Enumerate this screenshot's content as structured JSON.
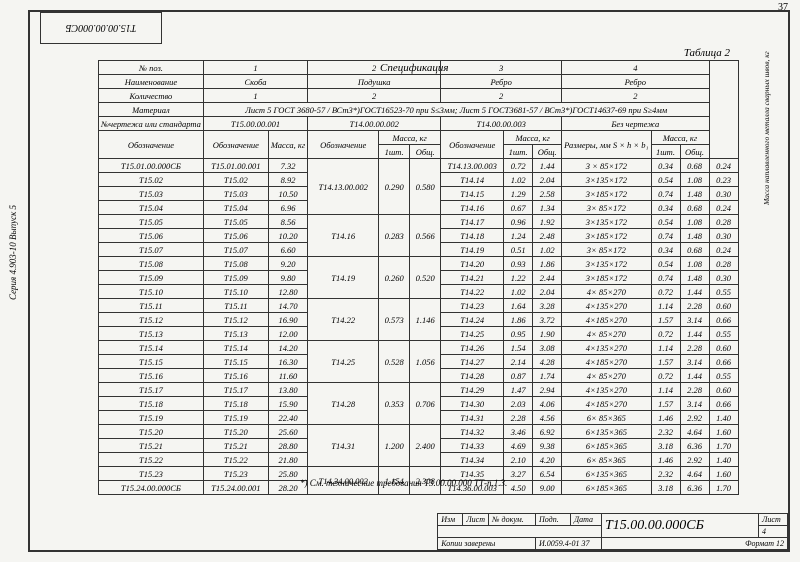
{
  "page_number": "37",
  "left_stamp": "Т15.00.00.000СБ",
  "side_text": "Серия 4.903-10 Выпуск 5",
  "table_label": "Таблица 2",
  "spec_label": "Спецификация",
  "rotated_col_label": "Масса наплавленного металла сварных швов, кг",
  "note": "*) См. технические требования  Т3.00.00.000 ТТ-п.1.3.",
  "drawing_no": "Т15.00.00.000СБ",
  "sheet_no": "4",
  "format": "Формат 12",
  "inv_code": "И.0059.4-01  37",
  "signer": "Копии заверены",
  "tb_labels": [
    "Изм",
    "Лист",
    "№ докум.",
    "Подп.",
    "Дата"
  ],
  "sheet_label": "Лист",
  "header": {
    "no_poz": "№ поз.",
    "c1": "1",
    "c2": "2",
    "c3": "3",
    "c4": "4",
    "naim": "Наименование",
    "n1": "Скоба",
    "n2": "Подушка",
    "n3": "Ребро",
    "n4": "Ребро",
    "kol": "Количество",
    "k1": "1",
    "k2": "2",
    "k3": "2",
    "k4": "2",
    "mat": "Материал",
    "mat_line": "Лист  5 ГОСТ 3680-57 / ВСт3*)ГОСТ16523-70   при S≤3мм;  Лист  5 ГОСТ3681-57 / ВСт3*)ГОСТ14637-69  при S≥4мм",
    "chert": "№чертежа или стандарта",
    "ch1": "Т15.00.00.001",
    "ch2": "Т14.00.00.002",
    "ch3": "Т14.00.00.003",
    "ch4": "Без чертежа",
    "oboz": "Обозначение",
    "massa": "Масса, кг",
    "one": "1шт.",
    "all": "Общ.",
    "razmer": "Размеры, мм  S × h × b₁"
  },
  "rows": [
    {
      "d": "Т15.01.00.000СБ",
      "o1": "Т15.01.00.001",
      "m1": "7.32",
      "o2": "",
      "m2o": "",
      "m2t": "",
      "o3": "Т14.13.00.003",
      "m3o": "0.72",
      "m3t": "1.44",
      "r": "3 × 85×172",
      "m4o": "0.34",
      "m4t": "0.68",
      "w": "0.24"
    },
    {
      "d": "Т15.02",
      "o1": "Т15.02",
      "m1": "8.92",
      "o2": "Т14.13.00.002",
      "m2o": "0.290",
      "m2t": "0.580",
      "o3": "Т14.14",
      "m3o": "1.02",
      "m3t": "2.04",
      "r": "3×135×172",
      "m4o": "0.54",
      "m4t": "1.08",
      "w": "0.23"
    },
    {
      "d": "Т15.03",
      "o1": "Т15.03",
      "m1": "10.50",
      "o2": "",
      "m2o": "",
      "m2t": "",
      "o3": "Т14.15",
      "m3o": "1.29",
      "m3t": "2.58",
      "r": "3×185×172",
      "m4o": "0.74",
      "m4t": "1.48",
      "w": "0.30"
    },
    {
      "d": "Т15.04",
      "o1": "Т15.04",
      "m1": "6.96",
      "o2": "",
      "m2o": "",
      "m2t": "",
      "o3": "Т14.16",
      "m3o": "0.67",
      "m3t": "1.34",
      "r": "3× 85×172",
      "m4o": "0.34",
      "m4t": "0.68",
      "w": "0.24"
    },
    {
      "d": "Т15.05",
      "o1": "Т15.05",
      "m1": "8.56",
      "o2": "Т14.16",
      "m2o": "0.283",
      "m2t": "0.566",
      "o3": "Т14.17",
      "m3o": "0.96",
      "m3t": "1.92",
      "r": "3×135×172",
      "m4o": "0.54",
      "m4t": "1.08",
      "w": "0.28"
    },
    {
      "d": "Т15.06",
      "o1": "Т15.06",
      "m1": "10.20",
      "o2": "",
      "m2o": "",
      "m2t": "",
      "o3": "Т14.18",
      "m3o": "1.24",
      "m3t": "2.48",
      "r": "3×185×172",
      "m4o": "0.74",
      "m4t": "1.48",
      "w": "0.30"
    },
    {
      "d": "Т15.07",
      "o1": "Т15.07",
      "m1": "6.60",
      "o2": "",
      "m2o": "",
      "m2t": "",
      "o3": "Т14.19",
      "m3o": "0.51",
      "m3t": "1.02",
      "r": "3× 85×172",
      "m4o": "0.34",
      "m4t": "0.68",
      "w": "0.24"
    },
    {
      "d": "Т15.08",
      "o1": "Т15.08",
      "m1": "9.20",
      "o2": "Т14.19",
      "m2o": "0.260",
      "m2t": "0.520",
      "o3": "Т14.20",
      "m3o": "0.93",
      "m3t": "1.86",
      "r": "3×135×172",
      "m4o": "0.54",
      "m4t": "1.08",
      "w": "0.28"
    },
    {
      "d": "Т15.09",
      "o1": "Т15.09",
      "m1": "9.80",
      "o2": "",
      "m2o": "",
      "m2t": "",
      "o3": "Т14.21",
      "m3o": "1.22",
      "m3t": "2.44",
      "r": "3×185×172",
      "m4o": "0.74",
      "m4t": "1.48",
      "w": "0.30"
    },
    {
      "d": "Т15.10",
      "o1": "Т15.10",
      "m1": "12.80",
      "o2": "",
      "m2o": "",
      "m2t": "",
      "o3": "Т14.22",
      "m3o": "1.02",
      "m3t": "2.04",
      "r": "4× 85×270",
      "m4o": "0.72",
      "m4t": "1.44",
      "w": "0.55"
    },
    {
      "d": "Т15.11",
      "o1": "Т15.11",
      "m1": "14.70",
      "o2": "Т14.22",
      "m2o": "0.573",
      "m2t": "1.146",
      "o3": "Т14.23",
      "m3o": "1.64",
      "m3t": "3.28",
      "r": "4×135×270",
      "m4o": "1.14",
      "m4t": "2.28",
      "w": "0.60"
    },
    {
      "d": "Т15.12",
      "o1": "Т15.12",
      "m1": "16.90",
      "o2": "",
      "m2o": "",
      "m2t": "",
      "o3": "Т14.24",
      "m3o": "1.86",
      "m3t": "3.72",
      "r": "4×185×270",
      "m4o": "1.57",
      "m4t": "3.14",
      "w": "0.66"
    },
    {
      "d": "Т15.13",
      "o1": "Т15.13",
      "m1": "12.00",
      "o2": "",
      "m2o": "",
      "m2t": "",
      "o3": "Т14.25",
      "m3o": "0.95",
      "m3t": "1.90",
      "r": "4× 85×270",
      "m4o": "0.72",
      "m4t": "1.44",
      "w": "0.55"
    },
    {
      "d": "Т15.14",
      "o1": "Т15.14",
      "m1": "14.20",
      "o2": "Т14.25",
      "m2o": "0.528",
      "m2t": "1.056",
      "o3": "Т14.26",
      "m3o": "1.54",
      "m3t": "3.08",
      "r": "4×135×270",
      "m4o": "1.14",
      "m4t": "2.28",
      "w": "0.60"
    },
    {
      "d": "Т15.15",
      "o1": "Т15.15",
      "m1": "16.30",
      "o2": "",
      "m2o": "",
      "m2t": "",
      "o3": "Т14.27",
      "m3o": "2.14",
      "m3t": "4.28",
      "r": "4×185×270",
      "m4o": "1.57",
      "m4t": "3.14",
      "w": "0.66"
    },
    {
      "d": "Т15.16",
      "o1": "Т15.16",
      "m1": "11.60",
      "o2": "",
      "m2o": "",
      "m2t": "",
      "o3": "Т14.28",
      "m3o": "0.87",
      "m3t": "1.74",
      "r": "4× 85×270",
      "m4o": "0.72",
      "m4t": "1.44",
      "w": "0.55"
    },
    {
      "d": "Т15.17",
      "o1": "Т15.17",
      "m1": "13.80",
      "o2": "Т14.28",
      "m2o": "0.353",
      "m2t": "0.706",
      "o3": "Т14.29",
      "m3o": "1.47",
      "m3t": "2.94",
      "r": "4×135×270",
      "m4o": "1.14",
      "m4t": "2.28",
      "w": "0.60"
    },
    {
      "d": "Т15.18",
      "o1": "Т15.18",
      "m1": "15.90",
      "o2": "",
      "m2o": "",
      "m2t": "",
      "o3": "Т14.30",
      "m3o": "2.03",
      "m3t": "4.06",
      "r": "4×185×270",
      "m4o": "1.57",
      "m4t": "3.14",
      "w": "0.66"
    },
    {
      "d": "Т15.19",
      "o1": "Т15.19",
      "m1": "22.40",
      "o2": "",
      "m2o": "",
      "m2t": "",
      "o3": "Т14.31",
      "m3o": "2.28",
      "m3t": "4.56",
      "r": "6× 85×365",
      "m4o": "1.46",
      "m4t": "2.92",
      "w": "1.40"
    },
    {
      "d": "Т15.20",
      "o1": "Т15.20",
      "m1": "25.60",
      "o2": "Т14.31",
      "m2o": "1.200",
      "m2t": "2.400",
      "o3": "Т14.32",
      "m3o": "3.46",
      "m3t": "6.92",
      "r": "6×135×365",
      "m4o": "2.32",
      "m4t": "4.64",
      "w": "1.60"
    },
    {
      "d": "Т15.21",
      "o1": "Т15.21",
      "m1": "28.80",
      "o2": "",
      "m2o": "",
      "m2t": "",
      "o3": "Т14.33",
      "m3o": "4.69",
      "m3t": "9.38",
      "r": "6×185×365",
      "m4o": "3.18",
      "m4t": "6.36",
      "w": "1.70"
    },
    {
      "d": "Т15.22",
      "o1": "Т15.22",
      "m1": "21.80",
      "o2": "",
      "m2o": "",
      "m2t": "",
      "o3": "Т14.34",
      "m3o": "2.10",
      "m3t": "4.20",
      "r": "6× 85×365",
      "m4o": "1.46",
      "m4t": "2.92",
      "w": "1.40"
    },
    {
      "d": "Т15.23",
      "o1": "Т15.23",
      "m1": "25.80",
      "o2": "Т14.34.00.002",
      "m2o": "1.154",
      "m2t": "2.308",
      "o3": "Т14.35",
      "m3o": "3.27",
      "m3t": "6.54",
      "r": "6×135×365",
      "m4o": "2.32",
      "m4t": "4.64",
      "w": "1.60"
    },
    {
      "d": "Т15.24.00.000СБ",
      "o1": "Т15.24.00.001",
      "m1": "28.20",
      "o2": "",
      "m2o": "",
      "m2t": "",
      "o3": "Т14.36.00.003",
      "m3o": "4.50",
      "m3t": "9.00",
      "r": "6×185×365",
      "m4o": "3.18",
      "m4t": "6.36",
      "w": "1.70"
    }
  ],
  "col_widths": {
    "d": 72,
    "o1": 60,
    "m1": 28,
    "o2": 66,
    "m2o": 26,
    "m2t": 26,
    "o3": 58,
    "m3o": 24,
    "m3t": 24,
    "r": 54,
    "m4o": 24,
    "m4t": 24,
    "w": 24
  }
}
